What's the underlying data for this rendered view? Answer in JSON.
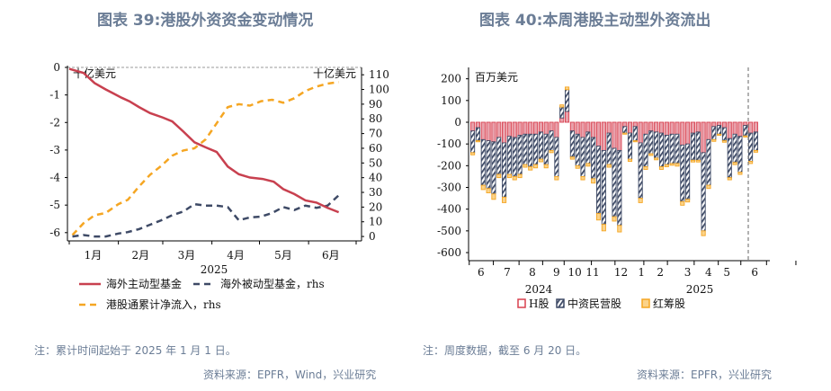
{
  "left": {
    "title": "图表 39:港股外资资金变动情况",
    "note": "注：累计时间起始于 2025 年 1 月 1 日。",
    "source": "资料来源：EPFR，Wind，兴业研究"
  },
  "right": {
    "title": "图表 40:本周港股主动型外资流出",
    "note": "注：周度数据，截至 6 月 20 日。",
    "source": "资料来源：EPFR，兴业研究"
  },
  "chart_data": [
    {
      "type": "line",
      "unit_left": "十亿美元",
      "unit_right": "十亿美元",
      "xlabel": "2025",
      "x_ticks": [
        "1月",
        "2月",
        "3月",
        "4月",
        "5月",
        "6月"
      ],
      "ylim_left": [
        -6.3,
        0
      ],
      "yticks_left": [
        0,
        -1,
        -2,
        -3,
        -4,
        -5,
        -6
      ],
      "ylim_right": [
        -3,
        115
      ],
      "yticks_right": [
        0,
        10,
        20,
        30,
        40,
        50,
        60,
        70,
        80,
        90,
        100,
        110
      ],
      "legend": "bottom",
      "series": [
        {
          "name": "海外主动型基金",
          "axis": "left",
          "color": "#c8404f",
          "style": "solid",
          "x": [
            "2025-01-01",
            "2025-01-10",
            "2025-01-17",
            "2025-01-24",
            "2025-02-03",
            "2025-02-08",
            "2025-02-14",
            "2025-02-21",
            "2025-03-01",
            "2025-03-07",
            "2025-03-14",
            "2025-03-21",
            "2025-03-28",
            "2025-04-04",
            "2025-04-11",
            "2025-04-18",
            "2025-04-25",
            "2025-05-03",
            "2025-05-10",
            "2025-05-16",
            "2025-05-23",
            "2025-05-30",
            "2025-06-06",
            "2025-06-13",
            "2025-06-20"
          ],
          "values": [
            -0.05,
            -0.2,
            -0.57,
            -0.8,
            -1.1,
            -1.23,
            -1.44,
            -1.66,
            -1.82,
            -1.96,
            -2.33,
            -2.72,
            -2.9,
            -3.07,
            -3.6,
            -3.88,
            -4.0,
            -4.05,
            -4.15,
            -4.42,
            -4.6,
            -4.83,
            -4.91,
            -5.1,
            -5.26
          ]
        },
        {
          "name": "海外被动型基金，rhs",
          "axis": "right",
          "color": "#3e4a66",
          "style": "dash",
          "x": [
            "2025-01-03",
            "2025-01-10",
            "2025-01-17",
            "2025-01-24",
            "2025-02-01",
            "2025-02-07",
            "2025-02-14",
            "2025-02-21",
            "2025-02-28",
            "2025-03-07",
            "2025-03-14",
            "2025-03-21",
            "2025-03-28",
            "2025-04-04",
            "2025-04-11",
            "2025-04-18",
            "2025-04-25",
            "2025-05-02",
            "2025-05-09",
            "2025-05-16",
            "2025-05-23",
            "2025-05-30",
            "2025-06-06",
            "2025-06-13",
            "2025-06-20"
          ],
          "values": [
            0,
            1,
            0,
            0,
            2,
            3,
            5,
            8,
            11,
            14.5,
            17,
            22,
            21,
            21,
            20,
            11,
            13,
            13.5,
            16,
            20,
            18,
            21,
            19.5,
            21,
            28
          ]
        },
        {
          "name": "港股通累计净流入，rhs",
          "axis": "right",
          "color": "#f5a623",
          "style": "dash",
          "x": [
            "2025-01-03",
            "2025-01-10",
            "2025-01-17",
            "2025-01-24",
            "2025-02-01",
            "2025-02-07",
            "2025-02-14",
            "2025-02-21",
            "2025-02-28",
            "2025-03-07",
            "2025-03-14",
            "2025-03-21",
            "2025-03-28",
            "2025-04-04",
            "2025-04-11",
            "2025-04-18",
            "2025-04-25",
            "2025-05-02",
            "2025-05-09",
            "2025-05-16",
            "2025-05-23",
            "2025-05-30",
            "2025-06-06",
            "2025-06-13",
            "2025-06-20"
          ],
          "values": [
            1,
            9,
            14.5,
            16,
            22,
            25,
            34,
            42,
            48,
            55,
            58.5,
            60,
            66,
            77,
            88,
            90,
            89,
            92,
            93,
            91,
            94,
            99,
            102,
            104,
            105
          ]
        }
      ]
    },
    {
      "type": "bar",
      "stacked": true,
      "unit": "百万美元",
      "ylim": [
        -650,
        230
      ],
      "yticks": [
        200,
        100,
        0,
        -100,
        -200,
        -300,
        -400,
        -500,
        -600
      ],
      "x_ticks": [
        "6",
        "7",
        "8",
        "9",
        "10",
        "11",
        "12",
        "1",
        "2",
        "3",
        "4",
        "5",
        "6"
      ],
      "years": [
        "2024",
        "2025"
      ],
      "legend": "bottom",
      "series": [
        {
          "name": "H股",
          "color": "#d9404f",
          "values": [
            -40,
            -25,
            -80,
            -85,
            -90,
            -70,
            -95,
            -65,
            -70,
            -60,
            -55,
            -55,
            -55,
            -45,
            -55,
            -40,
            -70,
            20,
            50,
            -40,
            -55,
            -70,
            -45,
            -70,
            -110,
            -130,
            -50,
            -120,
            -130,
            -20,
            -50,
            -20,
            -95,
            -55,
            -40,
            -45,
            -50,
            -60,
            -55,
            -55,
            -105,
            -100,
            -50,
            -45,
            -140,
            -80,
            -20,
            -15,
            -25,
            -75,
            -55,
            -65,
            -15,
            -50,
            -45
          ]
        },
        {
          "name": "中资民营股",
          "color": "#3e4a66",
          "values": [
            -100,
            -60,
            -210,
            -220,
            -240,
            -170,
            -250,
            -175,
            -180,
            -180,
            -140,
            -150,
            -140,
            -125,
            -140,
            -90,
            -180,
            50,
            100,
            -120,
            -145,
            -180,
            -145,
            -190,
            -310,
            -340,
            -145,
            -315,
            -345,
            -30,
            -120,
            -65,
            -255,
            -150,
            -105,
            -120,
            -155,
            -135,
            -135,
            -135,
            -260,
            -255,
            -125,
            -130,
            -360,
            -210,
            -60,
            -40,
            -60,
            -180,
            -130,
            -165,
            -48,
            -130,
            -85
          ]
        },
        {
          "name": "红筹股",
          "color": "#f5a623",
          "values": [
            -10,
            -5,
            -20,
            -20,
            -25,
            -15,
            -25,
            -15,
            -15,
            -15,
            -12,
            -15,
            -15,
            -12,
            -15,
            -10,
            -15,
            10,
            12,
            -10,
            -12,
            -15,
            -12,
            -20,
            -30,
            -30,
            -12,
            -20,
            -30,
            -5,
            -10,
            -5,
            -20,
            -12,
            -8,
            -8,
            -12,
            -10,
            -8,
            -12,
            -17,
            -12,
            -8,
            -8,
            -22,
            -15,
            -8,
            -5,
            -7,
            -10,
            -10,
            -10,
            -5,
            -10,
            -8
          ]
        }
      ]
    }
  ]
}
